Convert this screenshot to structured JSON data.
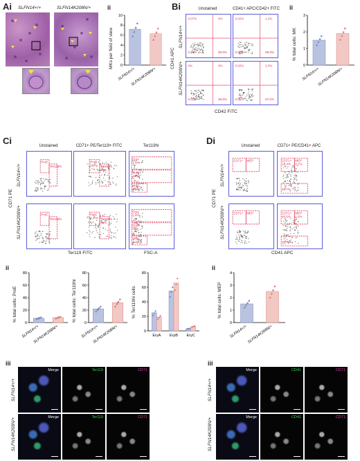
{
  "panels": {
    "Ai": "Ai",
    "ii_A": "ii",
    "Bi": "Bi",
    "ii_B": "ii",
    "Ci": "Ci",
    "Di": "Di",
    "ii_C": "ii",
    "ii_D": "ii",
    "iii_C": "iii",
    "iii_D": "iii"
  },
  "genotypes": {
    "wt": "SLFN14+/+",
    "mut": "SLFN14K208N/+"
  },
  "A": {
    "ylabel": "MKs per field of view",
    "yticks": [
      "0",
      "2",
      "4",
      "6",
      "8",
      "10"
    ]
  },
  "B": {
    "col1": "Unstained",
    "col2": "CD41+ APC/CD42+ FITC",
    "xaxis": "CD42 FITC",
    "yaxis": "CD41 APC",
    "ylabel_ii": "% total cells: MK",
    "yticks_ii": [
      "0",
      "1",
      "2",
      "3"
    ],
    "quads": {
      "wt_unst": [
        "0.07%",
        "0%",
        "0.01%",
        "99.9%"
      ],
      "wt_st": [
        "0.02%",
        "1.2%",
        "0.01%",
        "98.8%"
      ],
      "mut_unst": [
        "0%",
        "0%",
        "0.01%",
        "99.9%"
      ],
      "mut_st": [
        "0.02%",
        "2.4%",
        "0.01%",
        "97.6%"
      ]
    }
  },
  "C": {
    "col1": "Unstained",
    "col2": "CD71+ PE/Ter119+ FITC",
    "col3": "Ter119hi",
    "xaxis": "Ter119 FITC",
    "xaxis3": "FSC-A",
    "yaxis": "CD71 PE",
    "gates": [
      "ProE",
      "Ter119hi",
      "EryA",
      "EryB",
      "EryC"
    ],
    "x3ticks": [
      "0",
      "2,000,000",
      "4,033,814"
    ],
    "vals": {
      "wt": {
        "proe": "2.0%",
        "ter": "38%",
        "eryA": "7.9%",
        "eryB": "47%",
        "eryC": "3.0%"
      },
      "mut": {
        "proe": "1.4%",
        "ter": "46%",
        "eryA": "5.4%",
        "eryB": "39%",
        "eryC": "4.1%"
      }
    },
    "ii1_ylabel": "% total cells: ProE",
    "ii1_ticks": [
      "0",
      "20",
      "40",
      "60",
      "80"
    ],
    "ii2_ylabel": "% total cells: Ter119hi",
    "ii2_ticks": [
      "0",
      "20",
      "40",
      "60",
      "80"
    ],
    "ii3_ylabel": "% Ter119hi cells",
    "ii3_ticks": [
      "0",
      "20",
      "40",
      "60",
      "80"
    ],
    "ii3_cats": [
      "EryA",
      "EryB",
      "EryC"
    ]
  },
  "D": {
    "col1": "Unstained",
    "col2": "CD71+ PE/CD41+ APC",
    "xaxis": "CD41 APC",
    "yaxis": "CD71 PE",
    "gates": [
      "CD71+",
      "MEP"
    ],
    "vals": {
      "wt": {
        "cd71": "28.4%",
        "mep": "0.7%",
        "lower": "40.7%"
      },
      "mut": {
        "cd71": "40.6%",
        "mep": "1.6%",
        "lower": "37.1%"
      }
    },
    "ii_ylabel": "% total cells: MEP",
    "ii_ticks": [
      "0",
      "1",
      "2",
      "3",
      "4"
    ]
  },
  "IF": {
    "merge": "Merge",
    "ter119": "Ter119",
    "cd71": "CD71",
    "cd41": "CD41"
  },
  "chart_data": [
    {
      "type": "bar",
      "title": "",
      "ylabel": "MKs per field of view",
      "categories": [
        "SLFN14+/+",
        "SLFN14K208N/+"
      ],
      "values": [
        7.2,
        6.3
      ],
      "ylim": [
        0,
        10
      ]
    },
    {
      "type": "bar",
      "title": "",
      "ylabel": "% total cells: MK",
      "categories": [
        "SLFN14+/+",
        "SLFN14K208N/+"
      ],
      "values": [
        1.5,
        1.9
      ],
      "ylim": [
        0,
        3
      ]
    },
    {
      "type": "bar",
      "title": "",
      "ylabel": "% total cells: ProE",
      "categories": [
        "SLFN14+/+",
        "SLFN14K208N/+"
      ],
      "values": [
        7,
        8
      ],
      "ylim": [
        0,
        80
      ]
    },
    {
      "type": "bar",
      "title": "",
      "ylabel": "% total cells: Ter119hi",
      "categories": [
        "SLFN14+/+",
        "SLFN14K208N/+"
      ],
      "values": [
        22,
        32
      ],
      "ylim": [
        0,
        80
      ]
    },
    {
      "type": "bar",
      "title": "",
      "ylabel": "% Ter119hi cells",
      "categories": [
        "EryA",
        "EryB",
        "EryC"
      ],
      "series": [
        {
          "name": "SLFN14+/+",
          "values": [
            25,
            55,
            3
          ]
        },
        {
          "name": "SLFN14K208N/+",
          "values": [
            19,
            66,
            6
          ]
        }
      ],
      "ylim": [
        0,
        80
      ]
    },
    {
      "type": "bar",
      "title": "",
      "ylabel": "% total cells: MEP",
      "categories": [
        "SLFN14+/+",
        "SLFN14K208N/+"
      ],
      "values": [
        1.5,
        2.5
      ],
      "ylim": [
        0,
        4
      ]
    }
  ],
  "colors": {
    "wt": "#b9c3df",
    "mut": "#f2c8c4",
    "wtEdge": "#7d8cc4",
    "mutEdge": "#d98580",
    "gate": "#e03050",
    "frame": "#5a5ad8"
  }
}
